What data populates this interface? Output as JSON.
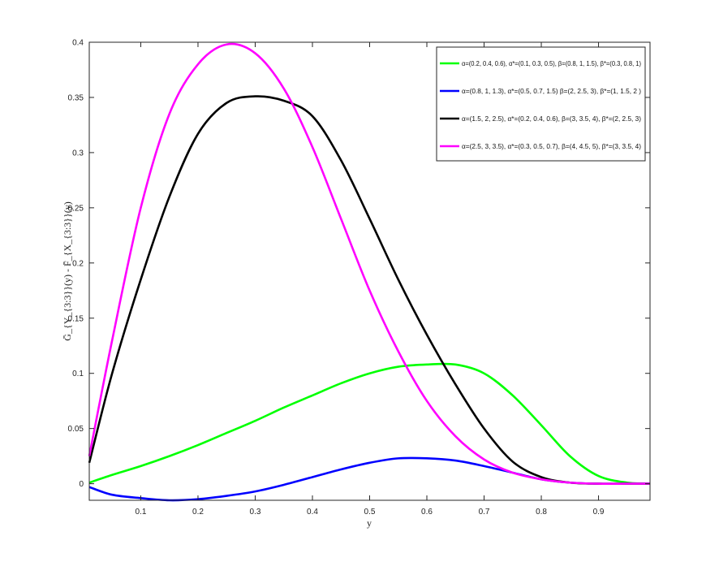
{
  "chart_data": {
    "type": "line",
    "title": "",
    "xlabel": "y",
    "ylabel": "Ḡ_{Y_{3:3}}(y) - F̄_{X_{3:3}}(y)",
    "xlim": [
      0.01,
      0.99
    ],
    "ylim": [
      -0.015,
      0.4
    ],
    "xticks": [
      0.1,
      0.2,
      0.3,
      0.4,
      0.5,
      0.6,
      0.7,
      0.8,
      0.9
    ],
    "xtick_labels": [
      "0.1",
      "0.2",
      "0.3",
      "0.4",
      "0.5",
      "0.6",
      "0.7",
      "0.8",
      "0.9"
    ],
    "yticks": [
      0,
      0.05,
      0.1,
      0.15,
      0.2,
      0.25,
      0.3,
      0.35,
      0.4
    ],
    "ytick_labels": [
      "0",
      "0.05",
      "0.1",
      "0.15",
      "0.2",
      "0.25",
      "0.3",
      "0.35",
      "0.4"
    ],
    "grid": false,
    "legend_position": "top-right",
    "x": [
      0.01,
      0.05,
      0.1,
      0.15,
      0.2,
      0.25,
      0.3,
      0.35,
      0.4,
      0.45,
      0.5,
      0.55,
      0.6,
      0.65,
      0.7,
      0.75,
      0.8,
      0.85,
      0.9,
      0.95,
      0.99
    ],
    "series": [
      {
        "name": "α=(0.2, 0.4, 0.6), α*=(0.1, 0.3, 0.5), β=(0.8, 1, 1.5), β*=(0.3, 0.8, 1)",
        "color": "#00ff00",
        "values": [
          0.001,
          0.008,
          0.016,
          0.025,
          0.035,
          0.046,
          0.057,
          0.069,
          0.08,
          0.091,
          0.1,
          0.106,
          0.108,
          0.108,
          0.1,
          0.08,
          0.053,
          0.025,
          0.007,
          0.001,
          0.0
        ]
      },
      {
        "name": "α=(0.8, 1, 1.3), α*=(0.5, 0.7, 1.5) β=(2, 2.5, 3), β*=(1, 1.5, 2 )",
        "color": "#0000ff",
        "values": [
          -0.003,
          -0.01,
          -0.013,
          -0.015,
          -0.014,
          -0.011,
          -0.007,
          -0.001,
          0.006,
          0.013,
          0.019,
          0.023,
          0.023,
          0.021,
          0.016,
          0.01,
          0.004,
          0.001,
          0.0,
          0.0,
          0.0
        ]
      },
      {
        "name": "α=(1.5, 2, 2.5), α*=(0.2, 0.4, 0.6), β=(3, 3.5, 4), β*=(2, 2.5, 3)",
        "color": "#000000",
        "values": [
          0.019,
          0.1,
          0.185,
          0.26,
          0.317,
          0.345,
          0.351,
          0.347,
          0.333,
          0.293,
          0.24,
          0.185,
          0.135,
          0.09,
          0.05,
          0.02,
          0.006,
          0.001,
          0.0,
          0.0,
          0.0
        ]
      },
      {
        "name": "α=(2.5, 3, 3.5), α*=(0.3, 0.5, 0.7), β=(4, 4.5, 5), β*=(3, 3.5, 4)",
        "color": "#ff00ff",
        "values": [
          0.025,
          0.13,
          0.25,
          0.335,
          0.38,
          0.398,
          0.39,
          0.358,
          0.305,
          0.24,
          0.175,
          0.12,
          0.075,
          0.043,
          0.022,
          0.01,
          0.004,
          0.001,
          0.0,
          0.0,
          0.0
        ]
      }
    ]
  }
}
